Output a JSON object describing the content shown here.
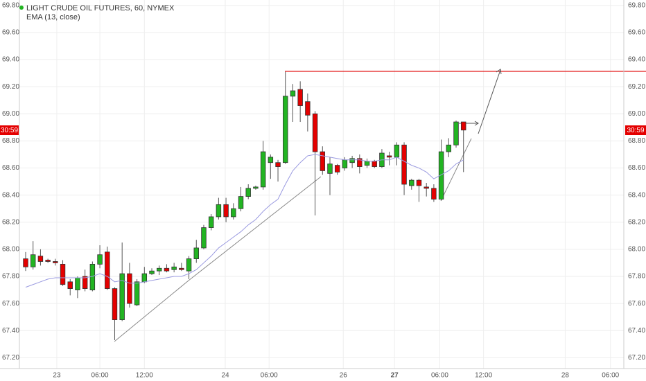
{
  "chart_data": {
    "type": "candlestick",
    "title": "LIGHT CRUDE OIL FUTURES, 60, NYMEX",
    "up_color": "#22b422",
    "down_color": "#e40000",
    "open": [
      67.93,
      67.87,
      67.95,
      67.92,
      67.91,
      67.89,
      67.76,
      67.7,
      67.8,
      67.7,
      67.89,
      67.98,
      67.71,
      67.48,
      67.82,
      67.59,
      67.76,
      67.82,
      67.84,
      67.86,
      67.85,
      67.86,
      67.84,
      67.93,
      68.01,
      68.16,
      68.24,
      68.33,
      68.24,
      68.3,
      68.39,
      68.45,
      68.46,
      68.64,
      68.64,
      68.64,
      69.13,
      69.18,
      69.09,
      69.0,
      68.72,
      68.56,
      68.62,
      68.6,
      68.64,
      68.67,
      68.62,
      68.65,
      68.61,
      68.69,
      68.68,
      68.77,
      68.47,
      68.51,
      68.46,
      68.45,
      68.37,
      68.72,
      68.77,
      68.94
    ],
    "high": [
      67.98,
      68.06,
      68.0,
      67.93,
      67.93,
      67.92,
      67.78,
      67.8,
      67.85,
      67.91,
      68.03,
      68.02,
      67.72,
      68.05,
      67.9,
      67.78,
      67.87,
      67.86,
      67.88,
      67.89,
      67.9,
      67.9,
      67.95,
      68.07,
      68.18,
      68.26,
      68.38,
      68.38,
      68.34,
      68.46,
      68.48,
      68.47,
      68.8,
      68.7,
      68.66,
      69.31,
      69.22,
      69.24,
      69.15,
      69.02,
      68.76,
      68.68,
      68.63,
      68.68,
      68.69,
      68.7,
      68.67,
      68.66,
      68.74,
      68.72,
      68.79,
      68.79,
      68.52,
      68.52,
      68.49,
      68.48,
      68.81,
      68.82,
      68.95,
      68.94
    ],
    "low": [
      67.84,
      67.85,
      67.88,
      67.9,
      67.88,
      67.73,
      67.66,
      67.64,
      67.69,
      67.69,
      67.86,
      67.7,
      67.33,
      67.47,
      67.57,
      67.58,
      67.75,
      67.81,
      67.81,
      67.83,
      67.83,
      67.84,
      67.78,
      67.9,
      68.0,
      68.14,
      68.22,
      68.2,
      68.22,
      68.28,
      68.37,
      68.44,
      68.44,
      68.52,
      68.5,
      68.63,
      68.94,
      68.94,
      68.87,
      68.25,
      68.55,
      68.4,
      68.55,
      68.58,
      68.6,
      68.56,
      68.6,
      68.6,
      68.6,
      68.62,
      68.62,
      68.4,
      68.44,
      68.35,
      68.39,
      68.35,
      68.36,
      68.68,
      68.75,
      68.57
    ],
    "close": [
      67.87,
      67.96,
      67.91,
      67.91,
      67.9,
      67.74,
      67.71,
      67.79,
      67.71,
      67.89,
      67.96,
      67.71,
      67.48,
      67.82,
      67.6,
      67.76,
      67.82,
      67.84,
      67.86,
      67.84,
      67.87,
      67.85,
      67.93,
      68.01,
      68.16,
      68.24,
      68.33,
      68.24,
      68.3,
      68.39,
      68.45,
      68.46,
      68.72,
      68.68,
      68.61,
      69.13,
      69.17,
      69.06,
      68.99,
      68.72,
      68.58,
      68.63,
      68.57,
      68.66,
      68.67,
      68.61,
      68.65,
      68.61,
      68.71,
      68.68,
      68.77,
      68.48,
      68.51,
      68.47,
      68.45,
      68.37,
      68.72,
      68.77,
      68.94,
      68.88
    ],
    "ema": {
      "name": "EMA (13, close)",
      "color": "#9a9ae0",
      "values": [
        67.72,
        67.74,
        67.76,
        67.78,
        67.79,
        67.79,
        67.79,
        67.79,
        67.79,
        67.8,
        67.82,
        67.8,
        67.76,
        67.77,
        67.75,
        67.75,
        67.76,
        67.77,
        67.78,
        67.79,
        67.8,
        67.8,
        67.82,
        67.85,
        67.9,
        67.95,
        68.01,
        68.05,
        68.09,
        68.13,
        68.18,
        68.22,
        68.28,
        68.33,
        68.37,
        68.48,
        68.58,
        68.64,
        68.69,
        68.7,
        68.69,
        68.68,
        68.67,
        68.66,
        68.66,
        68.66,
        68.65,
        68.65,
        68.66,
        68.66,
        68.68,
        68.65,
        68.62,
        68.6,
        68.57,
        68.52,
        68.55,
        68.58,
        68.63,
        68.66
      ]
    },
    "countdown_label": "30:59",
    "xlim": [
      -0.84,
      80.6
    ],
    "xticks": [
      {
        "value": 4.2,
        "label": "23"
      },
      {
        "value": 10,
        "label": "06:00"
      },
      {
        "value": 16,
        "label": "12:00"
      },
      {
        "value": 26.9,
        "label": "24"
      },
      {
        "value": 32.8,
        "label": "06:00"
      },
      {
        "value": 42.8,
        "label": "26"
      },
      {
        "value": 49.7,
        "label": "27"
      },
      {
        "value": 55.8,
        "label": "06:00"
      },
      {
        "value": 61.7,
        "label": "12:00"
      },
      {
        "value": 72.7,
        "label": "28"
      },
      {
        "value": 78.8,
        "label": "06:00"
      }
    ],
    "ylim": [
      67.12,
      69.84
    ],
    "yticks": [
      {
        "value": 67.2,
        "label": "67.20"
      },
      {
        "value": 67.4,
        "label": "67.40"
      },
      {
        "value": 67.6,
        "label": "67.60"
      },
      {
        "value": 67.8,
        "label": "67.80"
      },
      {
        "value": 68.0,
        "label": "68.00"
      },
      {
        "value": 68.2,
        "label": "68.20"
      },
      {
        "value": 68.4,
        "label": "68.40"
      },
      {
        "value": 68.6,
        "label": "68.60"
      },
      {
        "value": 68.8,
        "label": "68.80"
      },
      {
        "value": 69.0,
        "label": "69.00"
      },
      {
        "value": 69.2,
        "label": "69.20"
      },
      {
        "value": 69.4,
        "label": "69.40"
      },
      {
        "value": 69.6,
        "label": "69.60"
      },
      {
        "value": 69.8,
        "label": "69.80"
      }
    ],
    "grid": true
  }
}
